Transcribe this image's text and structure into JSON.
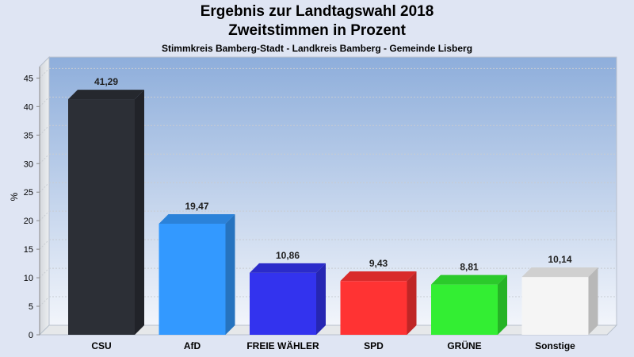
{
  "title": "Ergebnis zur Landtagswahl 2018",
  "subtitle": "Zweitstimmen in Prozent",
  "caption": "Stimmkreis Bamberg-Stadt - Landkreis Bamberg - Gemeinde Lisberg",
  "chart_data": {
    "type": "bar",
    "title": "Ergebnis zur Landtagswahl 2018",
    "subtitle": "Zweitstimmen in Prozent",
    "ylabel": "%",
    "xlabel": "",
    "ylim": [
      0,
      47
    ],
    "yticks": [
      0,
      5,
      10,
      15,
      20,
      25,
      30,
      35,
      40,
      45
    ],
    "grid": true,
    "categories": [
      "CSU",
      "AfD",
      "FREIE WÄHLER",
      "SPD",
      "GRÜNE",
      "Sonstige"
    ],
    "values": [
      41.29,
      19.47,
      10.86,
      9.43,
      8.81,
      10.14
    ],
    "value_labels": [
      "41,29",
      "19,47",
      "10,86",
      "9,43",
      "8,81",
      "10,14"
    ],
    "colors": [
      "#2c2f36",
      "#3399ff",
      "#3333ee",
      "#ff3333",
      "#33ee33",
      "#f5f5f5"
    ]
  }
}
